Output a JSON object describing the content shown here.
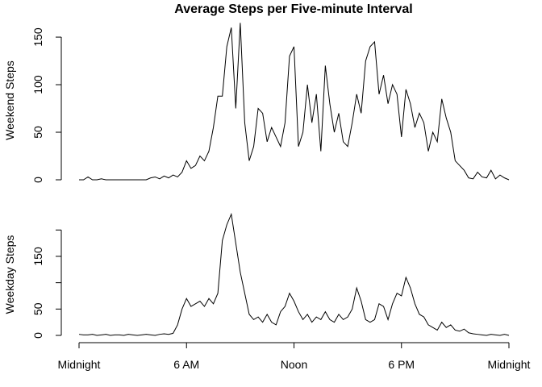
{
  "chart_data": [
    {
      "type": "line",
      "title": "Average Steps per Five-minute Interval",
      "ylabel": "Weekend Steps",
      "x": [
        0,
        0.25,
        0.5,
        0.75,
        1,
        1.25,
        1.5,
        1.75,
        2,
        2.25,
        2.5,
        2.75,
        3,
        3.25,
        3.5,
        3.75,
        4,
        4.25,
        4.5,
        4.75,
        5,
        5.25,
        5.5,
        5.75,
        6,
        6.25,
        6.5,
        6.75,
        7,
        7.25,
        7.5,
        7.75,
        8,
        8.25,
        8.5,
        8.75,
        9,
        9.25,
        9.5,
        9.75,
        10,
        10.25,
        10.5,
        10.75,
        11,
        11.25,
        11.5,
        11.75,
        12,
        12.25,
        12.5,
        12.75,
        13,
        13.25,
        13.5,
        13.75,
        14,
        14.25,
        14.5,
        14.75,
        15,
        15.25,
        15.5,
        15.75,
        16,
        16.25,
        16.5,
        16.75,
        17,
        17.25,
        17.5,
        17.75,
        18,
        18.25,
        18.5,
        18.75,
        19,
        19.25,
        19.5,
        19.75,
        20,
        20.25,
        20.5,
        20.75,
        21,
        21.25,
        21.5,
        21.75,
        22,
        22.25,
        22.5,
        22.75,
        23,
        23.25,
        23.5,
        23.75,
        24
      ],
      "values": [
        0,
        0,
        3,
        0,
        0,
        1,
        0,
        0,
        0,
        0,
        0,
        0,
        0,
        0,
        0,
        0,
        2,
        3,
        1,
        4,
        2,
        5,
        3,
        8,
        20,
        12,
        15,
        25,
        20,
        30,
        55,
        88,
        88,
        140,
        160,
        75,
        165,
        60,
        20,
        35,
        75,
        70,
        40,
        55,
        45,
        35,
        60,
        130,
        140,
        35,
        50,
        100,
        60,
        90,
        30,
        120,
        80,
        50,
        70,
        40,
        35,
        60,
        90,
        70,
        125,
        140,
        145,
        90,
        110,
        80,
        100,
        90,
        45,
        95,
        80,
        55,
        70,
        60,
        30,
        50,
        40,
        85,
        65,
        50,
        20,
        15,
        10,
        2,
        1,
        8,
        3,
        2,
        10,
        1,
        5,
        2,
        0
      ],
      "color": "#000000",
      "xlim": [
        0,
        24
      ],
      "ylim": [
        0,
        167
      ],
      "yticks": [
        0,
        50,
        100,
        150
      ]
    },
    {
      "type": "line",
      "ylabel": "Weekday Steps",
      "x": [
        0,
        0.25,
        0.5,
        0.75,
        1,
        1.25,
        1.5,
        1.75,
        2,
        2.25,
        2.5,
        2.75,
        3,
        3.25,
        3.5,
        3.75,
        4,
        4.25,
        4.5,
        4.75,
        5,
        5.25,
        5.5,
        5.75,
        6,
        6.25,
        6.5,
        6.75,
        7,
        7.25,
        7.5,
        7.75,
        8,
        8.25,
        8.5,
        8.75,
        9,
        9.25,
        9.5,
        9.75,
        10,
        10.25,
        10.5,
        10.75,
        11,
        11.25,
        11.5,
        11.75,
        12,
        12.25,
        12.5,
        12.75,
        13,
        13.25,
        13.5,
        13.75,
        14,
        14.25,
        14.5,
        14.75,
        15,
        15.25,
        15.5,
        15.75,
        16,
        16.25,
        16.5,
        16.75,
        17,
        17.25,
        17.5,
        17.75,
        18,
        18.25,
        18.5,
        18.75,
        19,
        19.25,
        19.5,
        19.75,
        20,
        20.25,
        20.5,
        20.75,
        21,
        21.25,
        21.5,
        21.75,
        22,
        22.25,
        22.5,
        22.75,
        23,
        23.25,
        23.5,
        23.75,
        24
      ],
      "values": [
        2,
        1,
        1,
        2,
        0,
        1,
        2,
        0,
        1,
        1,
        0,
        2,
        1,
        0,
        1,
        2,
        1,
        0,
        2,
        3,
        2,
        4,
        20,
        50,
        70,
        55,
        60,
        65,
        55,
        70,
        60,
        80,
        180,
        210,
        230,
        175,
        120,
        80,
        40,
        30,
        35,
        25,
        40,
        25,
        20,
        45,
        55,
        80,
        65,
        45,
        30,
        40,
        25,
        35,
        30,
        45,
        30,
        25,
        40,
        30,
        35,
        50,
        90,
        65,
        30,
        25,
        30,
        60,
        55,
        30,
        60,
        80,
        75,
        110,
        90,
        60,
        40,
        35,
        20,
        15,
        10,
        25,
        15,
        20,
        10,
        8,
        12,
        5,
        3,
        2,
        1,
        0,
        2,
        1,
        0,
        2,
        0
      ],
      "color": "#000000",
      "xlim": [
        0,
        24
      ],
      "ylim": [
        0,
        231
      ],
      "yticks": [
        0,
        50,
        150
      ],
      "minor_yticks": [
        100,
        200
      ],
      "xticks": [
        {
          "value": 0,
          "label": "Midnight"
        },
        {
          "value": 6,
          "label": "6 AM"
        },
        {
          "value": 12,
          "label": "Noon"
        },
        {
          "value": 18,
          "label": "6 PM"
        },
        {
          "value": 24,
          "label": "Midnight"
        }
      ]
    }
  ]
}
